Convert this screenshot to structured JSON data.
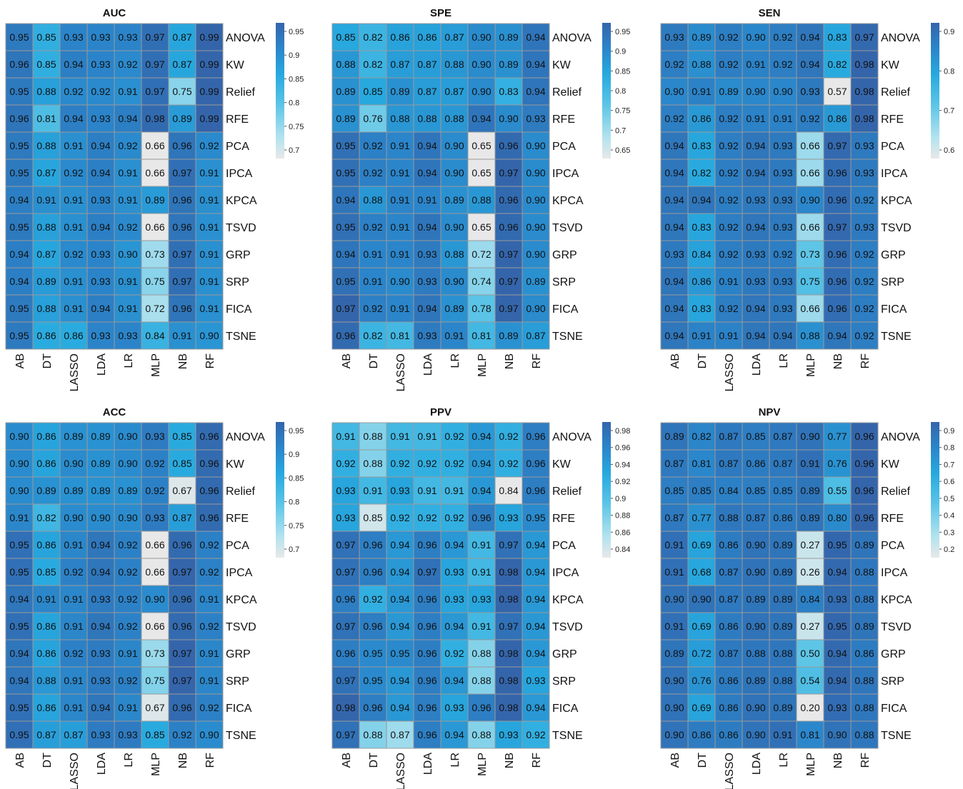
{
  "chart_data": [
    {
      "type": "heatmap",
      "title": "AUC",
      "rows": [
        "ANOVA",
        "KW",
        "Relief",
        "RFE",
        "PCA",
        "IPCA",
        "KPCA",
        "TSVD",
        "GRP",
        "SRP",
        "FICA",
        "TSNE"
      ],
      "columns": [
        "AB",
        "DT",
        "LASSO",
        "LDA",
        "LR",
        "MLP",
        "NB",
        "RF"
      ],
      "values": [
        [
          0.95,
          0.85,
          0.93,
          0.93,
          0.93,
          0.97,
          0.87,
          0.99
        ],
        [
          0.96,
          0.85,
          0.94,
          0.93,
          0.92,
          0.97,
          0.87,
          0.99
        ],
        [
          0.95,
          0.88,
          0.92,
          0.92,
          0.91,
          0.97,
          0.75,
          0.99
        ],
        [
          0.96,
          0.81,
          0.94,
          0.93,
          0.94,
          0.98,
          0.89,
          0.99
        ],
        [
          0.95,
          0.88,
          0.91,
          0.94,
          0.92,
          0.66,
          0.96,
          0.92
        ],
        [
          0.95,
          0.87,
          0.92,
          0.94,
          0.91,
          0.66,
          0.97,
          0.91
        ],
        [
          0.94,
          0.91,
          0.91,
          0.93,
          0.91,
          0.89,
          0.96,
          0.91
        ],
        [
          0.95,
          0.88,
          0.91,
          0.94,
          0.92,
          0.66,
          0.96,
          0.91
        ],
        [
          0.94,
          0.87,
          0.92,
          0.93,
          0.9,
          0.73,
          0.97,
          0.91
        ],
        [
          0.94,
          0.89,
          0.91,
          0.93,
          0.91,
          0.75,
          0.97,
          0.91
        ],
        [
          0.95,
          0.88,
          0.91,
          0.94,
          0.91,
          0.72,
          0.96,
          0.91
        ],
        [
          0.95,
          0.86,
          0.86,
          0.93,
          0.93,
          0.84,
          0.91,
          0.9
        ]
      ],
      "colorbar": {
        "range": [
          0.66,
          0.99
        ],
        "ticks": [
          "0.95",
          "0.9",
          "0.85",
          "0.8",
          "0.75",
          "0.7"
        ]
      }
    },
    {
      "type": "heatmap",
      "title": "SPE",
      "rows": [
        "ANOVA",
        "KW",
        "Relief",
        "RFE",
        "PCA",
        "IPCA",
        "KPCA",
        "TSVD",
        "GRP",
        "SRP",
        "FICA",
        "TSNE"
      ],
      "columns": [
        "AB",
        "DT",
        "LASSO",
        "LDA",
        "LR",
        "MLP",
        "NB",
        "RF"
      ],
      "values": [
        [
          0.85,
          0.82,
          0.86,
          0.86,
          0.87,
          0.9,
          0.89,
          0.94
        ],
        [
          0.88,
          0.82,
          0.87,
          0.87,
          0.88,
          0.9,
          0.89,
          0.94
        ],
        [
          0.89,
          0.85,
          0.89,
          0.87,
          0.87,
          0.9,
          0.83,
          0.94
        ],
        [
          0.89,
          0.76,
          0.88,
          0.88,
          0.88,
          0.94,
          0.9,
          0.93
        ],
        [
          0.95,
          0.92,
          0.91,
          0.94,
          0.9,
          0.65,
          0.96,
          0.9
        ],
        [
          0.95,
          0.92,
          0.91,
          0.94,
          0.9,
          0.65,
          0.97,
          0.9
        ],
        [
          0.94,
          0.88,
          0.91,
          0.91,
          0.89,
          0.88,
          0.96,
          0.9
        ],
        [
          0.95,
          0.92,
          0.91,
          0.94,
          0.9,
          0.65,
          0.96,
          0.9
        ],
        [
          0.94,
          0.91,
          0.91,
          0.93,
          0.88,
          0.72,
          0.97,
          0.9
        ],
        [
          0.95,
          0.91,
          0.9,
          0.93,
          0.9,
          0.74,
          0.97,
          0.89
        ],
        [
          0.97,
          0.92,
          0.91,
          0.94,
          0.89,
          0.78,
          0.97,
          0.9
        ],
        [
          0.96,
          0.82,
          0.81,
          0.93,
          0.91,
          0.81,
          0.89,
          0.87
        ]
      ],
      "colorbar": {
        "range": [
          0.65,
          0.97
        ],
        "ticks": [
          "0.95",
          "0.9",
          "0.85",
          "0.8",
          "0.75",
          "0.7",
          "0.65"
        ]
      }
    },
    {
      "type": "heatmap",
      "title": "SEN",
      "rows": [
        "ANOVA",
        "KW",
        "Relief",
        "RFE",
        "PCA",
        "IPCA",
        "KPCA",
        "TSVD",
        "GRP",
        "SRP",
        "FICA",
        "TSNE"
      ],
      "columns": [
        "AB",
        "DT",
        "LASSO",
        "LDA",
        "LR",
        "MLP",
        "NB",
        "RF"
      ],
      "values": [
        [
          0.93,
          0.89,
          0.92,
          0.9,
          0.92,
          0.94,
          0.83,
          0.97
        ],
        [
          0.92,
          0.88,
          0.92,
          0.91,
          0.92,
          0.94,
          0.82,
          0.98
        ],
        [
          0.9,
          0.91,
          0.89,
          0.9,
          0.9,
          0.93,
          0.57,
          0.98
        ],
        [
          0.92,
          0.86,
          0.92,
          0.91,
          0.91,
          0.92,
          0.86,
          0.98
        ],
        [
          0.94,
          0.83,
          0.92,
          0.94,
          0.93,
          0.66,
          0.97,
          0.93
        ],
        [
          0.94,
          0.82,
          0.92,
          0.94,
          0.93,
          0.66,
          0.96,
          0.93
        ],
        [
          0.94,
          0.94,
          0.92,
          0.93,
          0.93,
          0.9,
          0.96,
          0.92
        ],
        [
          0.94,
          0.83,
          0.92,
          0.94,
          0.93,
          0.66,
          0.97,
          0.93
        ],
        [
          0.93,
          0.84,
          0.92,
          0.93,
          0.92,
          0.73,
          0.96,
          0.92
        ],
        [
          0.94,
          0.86,
          0.91,
          0.93,
          0.93,
          0.75,
          0.96,
          0.92
        ],
        [
          0.94,
          0.83,
          0.92,
          0.94,
          0.93,
          0.66,
          0.96,
          0.92
        ],
        [
          0.94,
          0.91,
          0.91,
          0.94,
          0.94,
          0.88,
          0.94,
          0.92
        ]
      ],
      "colorbar": {
        "range": [
          0.57,
          0.98
        ],
        "ticks": [
          "0.9",
          "0.8",
          "0.7",
          "0.6"
        ]
      }
    },
    {
      "type": "heatmap",
      "title": "ACC",
      "rows": [
        "ANOVA",
        "KW",
        "Relief",
        "RFE",
        "PCA",
        "IPCA",
        "KPCA",
        "TSVD",
        "GRP",
        "SRP",
        "FICA",
        "TSNE"
      ],
      "columns": [
        "AB",
        "DT",
        "LASSO",
        "LDA",
        "LR",
        "MLP",
        "NB",
        "RF"
      ],
      "values": [
        [
          0.9,
          0.86,
          0.89,
          0.89,
          0.9,
          0.93,
          0.85,
          0.96
        ],
        [
          0.9,
          0.86,
          0.9,
          0.89,
          0.9,
          0.92,
          0.85,
          0.96
        ],
        [
          0.9,
          0.89,
          0.89,
          0.89,
          0.89,
          0.92,
          0.67,
          0.96
        ],
        [
          0.91,
          0.82,
          0.9,
          0.9,
          0.9,
          0.93,
          0.87,
          0.96
        ],
        [
          0.95,
          0.86,
          0.91,
          0.94,
          0.92,
          0.66,
          0.96,
          0.92
        ],
        [
          0.95,
          0.85,
          0.92,
          0.94,
          0.92,
          0.66,
          0.97,
          0.92
        ],
        [
          0.94,
          0.91,
          0.91,
          0.93,
          0.92,
          0.9,
          0.96,
          0.91
        ],
        [
          0.95,
          0.86,
          0.91,
          0.94,
          0.92,
          0.66,
          0.96,
          0.92
        ],
        [
          0.94,
          0.86,
          0.92,
          0.93,
          0.91,
          0.73,
          0.97,
          0.91
        ],
        [
          0.94,
          0.88,
          0.91,
          0.93,
          0.92,
          0.75,
          0.97,
          0.91
        ],
        [
          0.95,
          0.86,
          0.91,
          0.94,
          0.91,
          0.67,
          0.96,
          0.92
        ],
        [
          0.95,
          0.87,
          0.87,
          0.93,
          0.93,
          0.85,
          0.92,
          0.9
        ]
      ],
      "colorbar": {
        "range": [
          0.66,
          0.97
        ],
        "ticks": [
          "0.95",
          "0.9",
          "0.85",
          "0.8",
          "0.75",
          "0.7"
        ]
      }
    },
    {
      "type": "heatmap",
      "title": "PPV",
      "rows": [
        "ANOVA",
        "KW",
        "Relief",
        "RFE",
        "PCA",
        "IPCA",
        "KPCA",
        "TSVD",
        "GRP",
        "SRP",
        "FICA",
        "TSNE"
      ],
      "columns": [
        "AB",
        "DT",
        "LASSO",
        "LDA",
        "LR",
        "MLP",
        "NB",
        "RF"
      ],
      "values": [
        [
          0.91,
          0.88,
          0.91,
          0.91,
          0.92,
          0.94,
          0.92,
          0.96
        ],
        [
          0.92,
          0.88,
          0.92,
          0.92,
          0.92,
          0.94,
          0.92,
          0.96
        ],
        [
          0.93,
          0.91,
          0.93,
          0.91,
          0.91,
          0.94,
          0.84,
          0.96
        ],
        [
          0.93,
          0.85,
          0.92,
          0.92,
          0.92,
          0.96,
          0.93,
          0.95
        ],
        [
          0.97,
          0.96,
          0.94,
          0.96,
          0.94,
          0.91,
          0.97,
          0.94
        ],
        [
          0.97,
          0.96,
          0.94,
          0.97,
          0.93,
          0.91,
          0.98,
          0.94
        ],
        [
          0.96,
          0.92,
          0.94,
          0.96,
          0.93,
          0.93,
          0.98,
          0.94
        ],
        [
          0.97,
          0.96,
          0.94,
          0.96,
          0.94,
          0.91,
          0.97,
          0.94
        ],
        [
          0.96,
          0.95,
          0.95,
          0.96,
          0.92,
          0.88,
          0.98,
          0.94
        ],
        [
          0.97,
          0.95,
          0.94,
          0.96,
          0.94,
          0.88,
          0.98,
          0.93
        ],
        [
          0.98,
          0.96,
          0.94,
          0.96,
          0.93,
          0.96,
          0.98,
          0.94
        ],
        [
          0.97,
          0.88,
          0.87,
          0.96,
          0.94,
          0.88,
          0.93,
          0.92
        ]
      ],
      "colorbar": {
        "range": [
          0.84,
          0.98
        ],
        "ticks": [
          "0.98",
          "0.96",
          "0.94",
          "0.92",
          "0.9",
          "0.88",
          "0.86",
          "0.84"
        ]
      }
    },
    {
      "type": "heatmap",
      "title": "NPV",
      "rows": [
        "ANOVA",
        "KW",
        "Relief",
        "RFE",
        "PCA",
        "IPCA",
        "KPCA",
        "TSVD",
        "GRP",
        "SRP",
        "FICA",
        "TSNE"
      ],
      "columns": [
        "AB",
        "DT",
        "LASSO",
        "LDA",
        "LR",
        "MLP",
        "NB",
        "RF"
      ],
      "values": [
        [
          0.89,
          0.82,
          0.87,
          0.85,
          0.87,
          0.9,
          0.77,
          0.96
        ],
        [
          0.87,
          0.81,
          0.87,
          0.86,
          0.87,
          0.91,
          0.76,
          0.96
        ],
        [
          0.85,
          0.85,
          0.84,
          0.85,
          0.85,
          0.89,
          0.55,
          0.96
        ],
        [
          0.87,
          0.77,
          0.88,
          0.87,
          0.86,
          0.89,
          0.8,
          0.96
        ],
        [
          0.91,
          0.69,
          0.86,
          0.9,
          0.89,
          0.27,
          0.95,
          0.89
        ],
        [
          0.91,
          0.68,
          0.87,
          0.9,
          0.89,
          0.26,
          0.94,
          0.88
        ],
        [
          0.9,
          0.9,
          0.87,
          0.89,
          0.89,
          0.84,
          0.93,
          0.88
        ],
        [
          0.91,
          0.69,
          0.86,
          0.9,
          0.89,
          0.27,
          0.95,
          0.89
        ],
        [
          0.89,
          0.72,
          0.87,
          0.88,
          0.88,
          0.5,
          0.94,
          0.86
        ],
        [
          0.9,
          0.76,
          0.86,
          0.89,
          0.88,
          0.54,
          0.94,
          0.88
        ],
        [
          0.9,
          0.69,
          0.86,
          0.9,
          0.89,
          0.2,
          0.93,
          0.88
        ],
        [
          0.9,
          0.86,
          0.86,
          0.9,
          0.91,
          0.81,
          0.9,
          0.88
        ]
      ],
      "colorbar": {
        "range": [
          0.2,
          0.96
        ],
        "ticks": [
          "0.9",
          "0.8",
          "0.7",
          "0.6",
          "0.5",
          "0.4",
          "0.3",
          "0.2"
        ]
      }
    }
  ]
}
